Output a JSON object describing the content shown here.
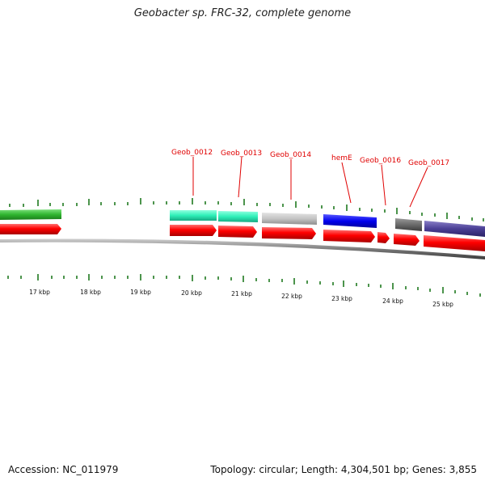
{
  "title": "Geobacter sp. FRC-32, complete genome",
  "accession": "Accession: NC_011979",
  "topology": "Topology: circular; Length: 4,304,501 bp; Genes: 3,855",
  "colors": {
    "backbone": "#8a8a8a",
    "tick": "#1f7a1f",
    "label": "#e00000",
    "cds": "#ff0000"
  },
  "gene_labels": [
    "Geob_0012",
    "Geob_0013",
    "Geob_0014",
    "hemE",
    "Geob_0016",
    "Geob_0017"
  ],
  "kbp_labels": [
    "17 kbp",
    "18 kbp",
    "19 kbp",
    "20 kbp",
    "21 kbp",
    "22 kbp",
    "23 kbp",
    "24 kbp",
    "25 kbp"
  ]
}
